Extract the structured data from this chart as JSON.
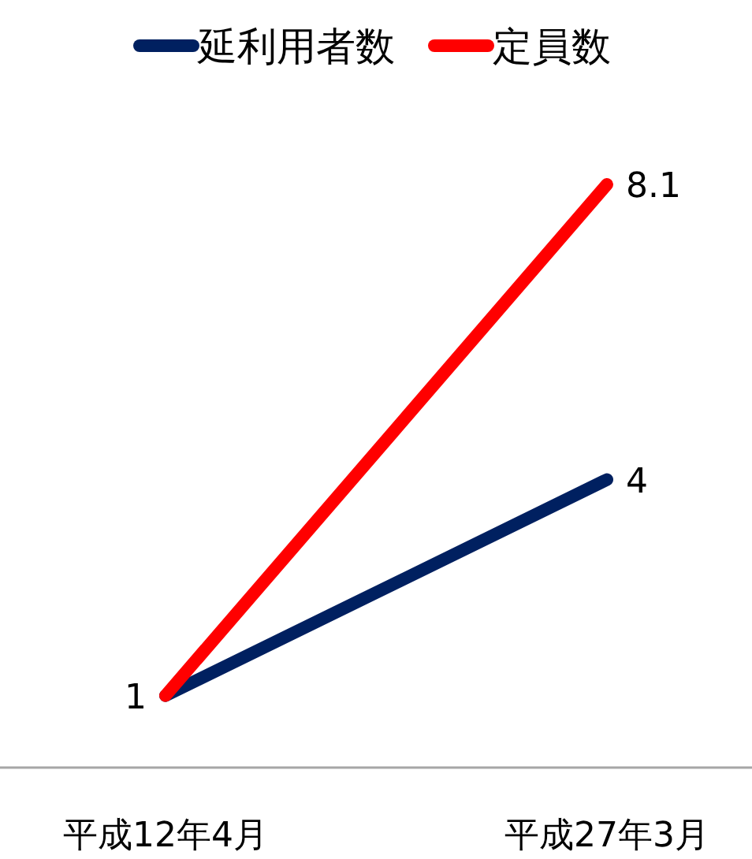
{
  "chart_data": {
    "type": "line",
    "categories": [
      "平成12年4月",
      "平成27年3月"
    ],
    "series": [
      {
        "name": "延利用者数",
        "color": "#002060",
        "values": [
          1,
          4
        ],
        "value_labels": [
          "1",
          "4"
        ]
      },
      {
        "name": "定員数",
        "color": "#ff0000",
        "values": [
          1,
          8.1
        ],
        "value_labels": [
          null,
          "8.1"
        ]
      }
    ],
    "legend": "top",
    "line_style": "solid",
    "marker": "none",
    "grid": false
  }
}
